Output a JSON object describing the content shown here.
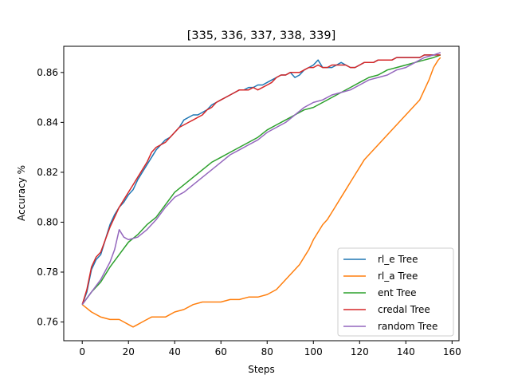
{
  "chart_data": {
    "type": "line",
    "title": "[335, 336, 337, 338, 339]",
    "xlabel": "Steps",
    "ylabel": "Accuracy %",
    "xlim": [
      -8,
      163
    ],
    "ylim": [
      0.7525,
      0.8705
    ],
    "xticks": [
      0,
      20,
      40,
      60,
      80,
      100,
      120,
      140,
      160
    ],
    "yticks": [
      0.76,
      0.78,
      0.8,
      0.82,
      0.84,
      0.86
    ],
    "ytick_labels": [
      "0.76",
      "0.78",
      "0.80",
      "0.82",
      "0.84",
      "0.86"
    ],
    "grid": false,
    "legend_position": "lower-right",
    "series": [
      {
        "name": "rl_e Tree",
        "color": "#1f77b4",
        "points": [
          [
            0,
            0.767
          ],
          [
            2,
            0.772
          ],
          [
            4,
            0.781
          ],
          [
            6,
            0.785
          ],
          [
            8,
            0.787
          ],
          [
            10,
            0.793
          ],
          [
            12,
            0.799
          ],
          [
            14,
            0.803
          ],
          [
            16,
            0.806
          ],
          [
            18,
            0.808
          ],
          [
            20,
            0.811
          ],
          [
            22,
            0.813
          ],
          [
            24,
            0.817
          ],
          [
            26,
            0.82
          ],
          [
            28,
            0.823
          ],
          [
            30,
            0.826
          ],
          [
            32,
            0.829
          ],
          [
            34,
            0.831
          ],
          [
            36,
            0.833
          ],
          [
            38,
            0.834
          ],
          [
            40,
            0.836
          ],
          [
            42,
            0.838
          ],
          [
            44,
            0.841
          ],
          [
            46,
            0.842
          ],
          [
            48,
            0.843
          ],
          [
            50,
            0.843
          ],
          [
            52,
            0.844
          ],
          [
            54,
            0.845
          ],
          [
            56,
            0.847
          ],
          [
            58,
            0.848
          ],
          [
            60,
            0.849
          ],
          [
            62,
            0.85
          ],
          [
            64,
            0.851
          ],
          [
            66,
            0.852
          ],
          [
            68,
            0.853
          ],
          [
            70,
            0.853
          ],
          [
            72,
            0.854
          ],
          [
            74,
            0.854
          ],
          [
            76,
            0.855
          ],
          [
            78,
            0.855
          ],
          [
            80,
            0.856
          ],
          [
            82,
            0.857
          ],
          [
            84,
            0.858
          ],
          [
            86,
            0.859
          ],
          [
            88,
            0.859
          ],
          [
            90,
            0.86
          ],
          [
            92,
            0.858
          ],
          [
            94,
            0.859
          ],
          [
            96,
            0.861
          ],
          [
            98,
            0.862
          ],
          [
            100,
            0.863
          ],
          [
            102,
            0.865
          ],
          [
            104,
            0.862
          ],
          [
            106,
            0.862
          ],
          [
            108,
            0.862
          ],
          [
            110,
            0.863
          ],
          [
            112,
            0.864
          ],
          [
            114,
            0.863
          ],
          [
            116,
            0.862
          ],
          [
            118,
            0.862
          ],
          [
            120,
            0.863
          ],
          [
            122,
            0.864
          ],
          [
            124,
            0.864
          ],
          [
            126,
            0.864
          ],
          [
            128,
            0.865
          ],
          [
            130,
            0.865
          ],
          [
            132,
            0.865
          ],
          [
            134,
            0.865
          ],
          [
            136,
            0.866
          ],
          [
            138,
            0.866
          ],
          [
            140,
            0.866
          ],
          [
            142,
            0.866
          ],
          [
            144,
            0.866
          ],
          [
            146,
            0.866
          ],
          [
            148,
            0.867
          ],
          [
            150,
            0.867
          ],
          [
            152,
            0.867
          ],
          [
            154,
            0.867
          ],
          [
            155,
            0.867
          ]
        ]
      },
      {
        "name": "rl_a Tree",
        "color": "#ff7f0e",
        "points": [
          [
            0,
            0.767
          ],
          [
            4,
            0.764
          ],
          [
            8,
            0.762
          ],
          [
            12,
            0.761
          ],
          [
            16,
            0.761
          ],
          [
            18,
            0.76
          ],
          [
            20,
            0.759
          ],
          [
            22,
            0.758
          ],
          [
            24,
            0.759
          ],
          [
            26,
            0.76
          ],
          [
            28,
            0.761
          ],
          [
            30,
            0.762
          ],
          [
            32,
            0.762
          ],
          [
            34,
            0.762
          ],
          [
            36,
            0.762
          ],
          [
            38,
            0.763
          ],
          [
            40,
            0.764
          ],
          [
            44,
            0.765
          ],
          [
            48,
            0.767
          ],
          [
            52,
            0.768
          ],
          [
            56,
            0.768
          ],
          [
            60,
            0.768
          ],
          [
            64,
            0.769
          ],
          [
            68,
            0.769
          ],
          [
            72,
            0.77
          ],
          [
            76,
            0.77
          ],
          [
            80,
            0.771
          ],
          [
            84,
            0.773
          ],
          [
            86,
            0.775
          ],
          [
            88,
            0.777
          ],
          [
            90,
            0.779
          ],
          [
            92,
            0.781
          ],
          [
            94,
            0.783
          ],
          [
            96,
            0.786
          ],
          [
            98,
            0.789
          ],
          [
            100,
            0.793
          ],
          [
            102,
            0.796
          ],
          [
            104,
            0.799
          ],
          [
            106,
            0.801
          ],
          [
            108,
            0.804
          ],
          [
            110,
            0.807
          ],
          [
            112,
            0.81
          ],
          [
            114,
            0.813
          ],
          [
            116,
            0.816
          ],
          [
            118,
            0.819
          ],
          [
            120,
            0.822
          ],
          [
            122,
            0.825
          ],
          [
            124,
            0.827
          ],
          [
            126,
            0.829
          ],
          [
            128,
            0.831
          ],
          [
            130,
            0.833
          ],
          [
            132,
            0.835
          ],
          [
            134,
            0.837
          ],
          [
            136,
            0.839
          ],
          [
            138,
            0.841
          ],
          [
            140,
            0.843
          ],
          [
            142,
            0.845
          ],
          [
            144,
            0.847
          ],
          [
            146,
            0.849
          ],
          [
            148,
            0.853
          ],
          [
            150,
            0.857
          ],
          [
            152,
            0.862
          ],
          [
            154,
            0.865
          ],
          [
            155,
            0.866
          ]
        ]
      },
      {
        "name": "ent Tree",
        "color": "#2ca02c",
        "points": [
          [
            0,
            0.767
          ],
          [
            4,
            0.772
          ],
          [
            8,
            0.776
          ],
          [
            12,
            0.782
          ],
          [
            16,
            0.787
          ],
          [
            20,
            0.792
          ],
          [
            24,
            0.795
          ],
          [
            28,
            0.799
          ],
          [
            32,
            0.802
          ],
          [
            36,
            0.807
          ],
          [
            40,
            0.812
          ],
          [
            44,
            0.815
          ],
          [
            48,
            0.818
          ],
          [
            52,
            0.821
          ],
          [
            56,
            0.824
          ],
          [
            60,
            0.826
          ],
          [
            64,
            0.828
          ],
          [
            68,
            0.83
          ],
          [
            72,
            0.832
          ],
          [
            76,
            0.834
          ],
          [
            80,
            0.837
          ],
          [
            84,
            0.839
          ],
          [
            88,
            0.841
          ],
          [
            92,
            0.843
          ],
          [
            96,
            0.845
          ],
          [
            100,
            0.846
          ],
          [
            104,
            0.848
          ],
          [
            108,
            0.85
          ],
          [
            112,
            0.852
          ],
          [
            116,
            0.854
          ],
          [
            120,
            0.856
          ],
          [
            124,
            0.858
          ],
          [
            128,
            0.859
          ],
          [
            132,
            0.861
          ],
          [
            136,
            0.862
          ],
          [
            140,
            0.863
          ],
          [
            144,
            0.864
          ],
          [
            148,
            0.865
          ],
          [
            152,
            0.866
          ],
          [
            155,
            0.867
          ]
        ]
      },
      {
        "name": "credal Tree",
        "color": "#d62728",
        "points": [
          [
            0,
            0.767
          ],
          [
            2,
            0.773
          ],
          [
            4,
            0.782
          ],
          [
            6,
            0.786
          ],
          [
            8,
            0.788
          ],
          [
            10,
            0.793
          ],
          [
            12,
            0.798
          ],
          [
            14,
            0.802
          ],
          [
            16,
            0.806
          ],
          [
            18,
            0.809
          ],
          [
            20,
            0.812
          ],
          [
            22,
            0.815
          ],
          [
            24,
            0.818
          ],
          [
            26,
            0.821
          ],
          [
            28,
            0.824
          ],
          [
            30,
            0.828
          ],
          [
            32,
            0.83
          ],
          [
            34,
            0.831
          ],
          [
            36,
            0.832
          ],
          [
            38,
            0.834
          ],
          [
            40,
            0.836
          ],
          [
            42,
            0.838
          ],
          [
            44,
            0.839
          ],
          [
            46,
            0.84
          ],
          [
            48,
            0.841
          ],
          [
            50,
            0.842
          ],
          [
            52,
            0.843
          ],
          [
            54,
            0.845
          ],
          [
            56,
            0.846
          ],
          [
            58,
            0.848
          ],
          [
            60,
            0.849
          ],
          [
            62,
            0.85
          ],
          [
            64,
            0.851
          ],
          [
            66,
            0.852
          ],
          [
            68,
            0.853
          ],
          [
            70,
            0.853
          ],
          [
            72,
            0.853
          ],
          [
            74,
            0.854
          ],
          [
            76,
            0.853
          ],
          [
            78,
            0.854
          ],
          [
            80,
            0.855
          ],
          [
            82,
            0.856
          ],
          [
            84,
            0.858
          ],
          [
            86,
            0.859
          ],
          [
            88,
            0.859
          ],
          [
            90,
            0.86
          ],
          [
            92,
            0.86
          ],
          [
            94,
            0.86
          ],
          [
            96,
            0.861
          ],
          [
            98,
            0.862
          ],
          [
            100,
            0.862
          ],
          [
            102,
            0.863
          ],
          [
            104,
            0.862
          ],
          [
            106,
            0.862
          ],
          [
            108,
            0.863
          ],
          [
            110,
            0.863
          ],
          [
            112,
            0.863
          ],
          [
            114,
            0.863
          ],
          [
            116,
            0.862
          ],
          [
            118,
            0.862
          ],
          [
            120,
            0.863
          ],
          [
            122,
            0.864
          ],
          [
            124,
            0.864
          ],
          [
            126,
            0.864
          ],
          [
            128,
            0.865
          ],
          [
            130,
            0.865
          ],
          [
            132,
            0.865
          ],
          [
            134,
            0.865
          ],
          [
            136,
            0.866
          ],
          [
            138,
            0.866
          ],
          [
            140,
            0.866
          ],
          [
            142,
            0.866
          ],
          [
            144,
            0.866
          ],
          [
            146,
            0.866
          ],
          [
            148,
            0.867
          ],
          [
            150,
            0.867
          ],
          [
            152,
            0.867
          ],
          [
            154,
            0.867
          ],
          [
            155,
            0.867
          ]
        ]
      },
      {
        "name": "random Tree",
        "color": "#9467bd",
        "points": [
          [
            0,
            0.767
          ],
          [
            4,
            0.772
          ],
          [
            8,
            0.777
          ],
          [
            12,
            0.784
          ],
          [
            14,
            0.789
          ],
          [
            16,
            0.797
          ],
          [
            18,
            0.794
          ],
          [
            20,
            0.793
          ],
          [
            24,
            0.794
          ],
          [
            28,
            0.797
          ],
          [
            32,
            0.801
          ],
          [
            36,
            0.806
          ],
          [
            40,
            0.81
          ],
          [
            44,
            0.812
          ],
          [
            48,
            0.815
          ],
          [
            52,
            0.818
          ],
          [
            56,
            0.821
          ],
          [
            60,
            0.824
          ],
          [
            64,
            0.827
          ],
          [
            68,
            0.829
          ],
          [
            72,
            0.831
          ],
          [
            76,
            0.833
          ],
          [
            80,
            0.836
          ],
          [
            84,
            0.838
          ],
          [
            88,
            0.84
          ],
          [
            92,
            0.843
          ],
          [
            96,
            0.846
          ],
          [
            100,
            0.848
          ],
          [
            104,
            0.849
          ],
          [
            108,
            0.851
          ],
          [
            112,
            0.852
          ],
          [
            116,
            0.853
          ],
          [
            120,
            0.855
          ],
          [
            124,
            0.857
          ],
          [
            128,
            0.858
          ],
          [
            132,
            0.859
          ],
          [
            136,
            0.861
          ],
          [
            140,
            0.862
          ],
          [
            144,
            0.864
          ],
          [
            148,
            0.866
          ],
          [
            152,
            0.867
          ],
          [
            155,
            0.868
          ]
        ]
      }
    ]
  }
}
